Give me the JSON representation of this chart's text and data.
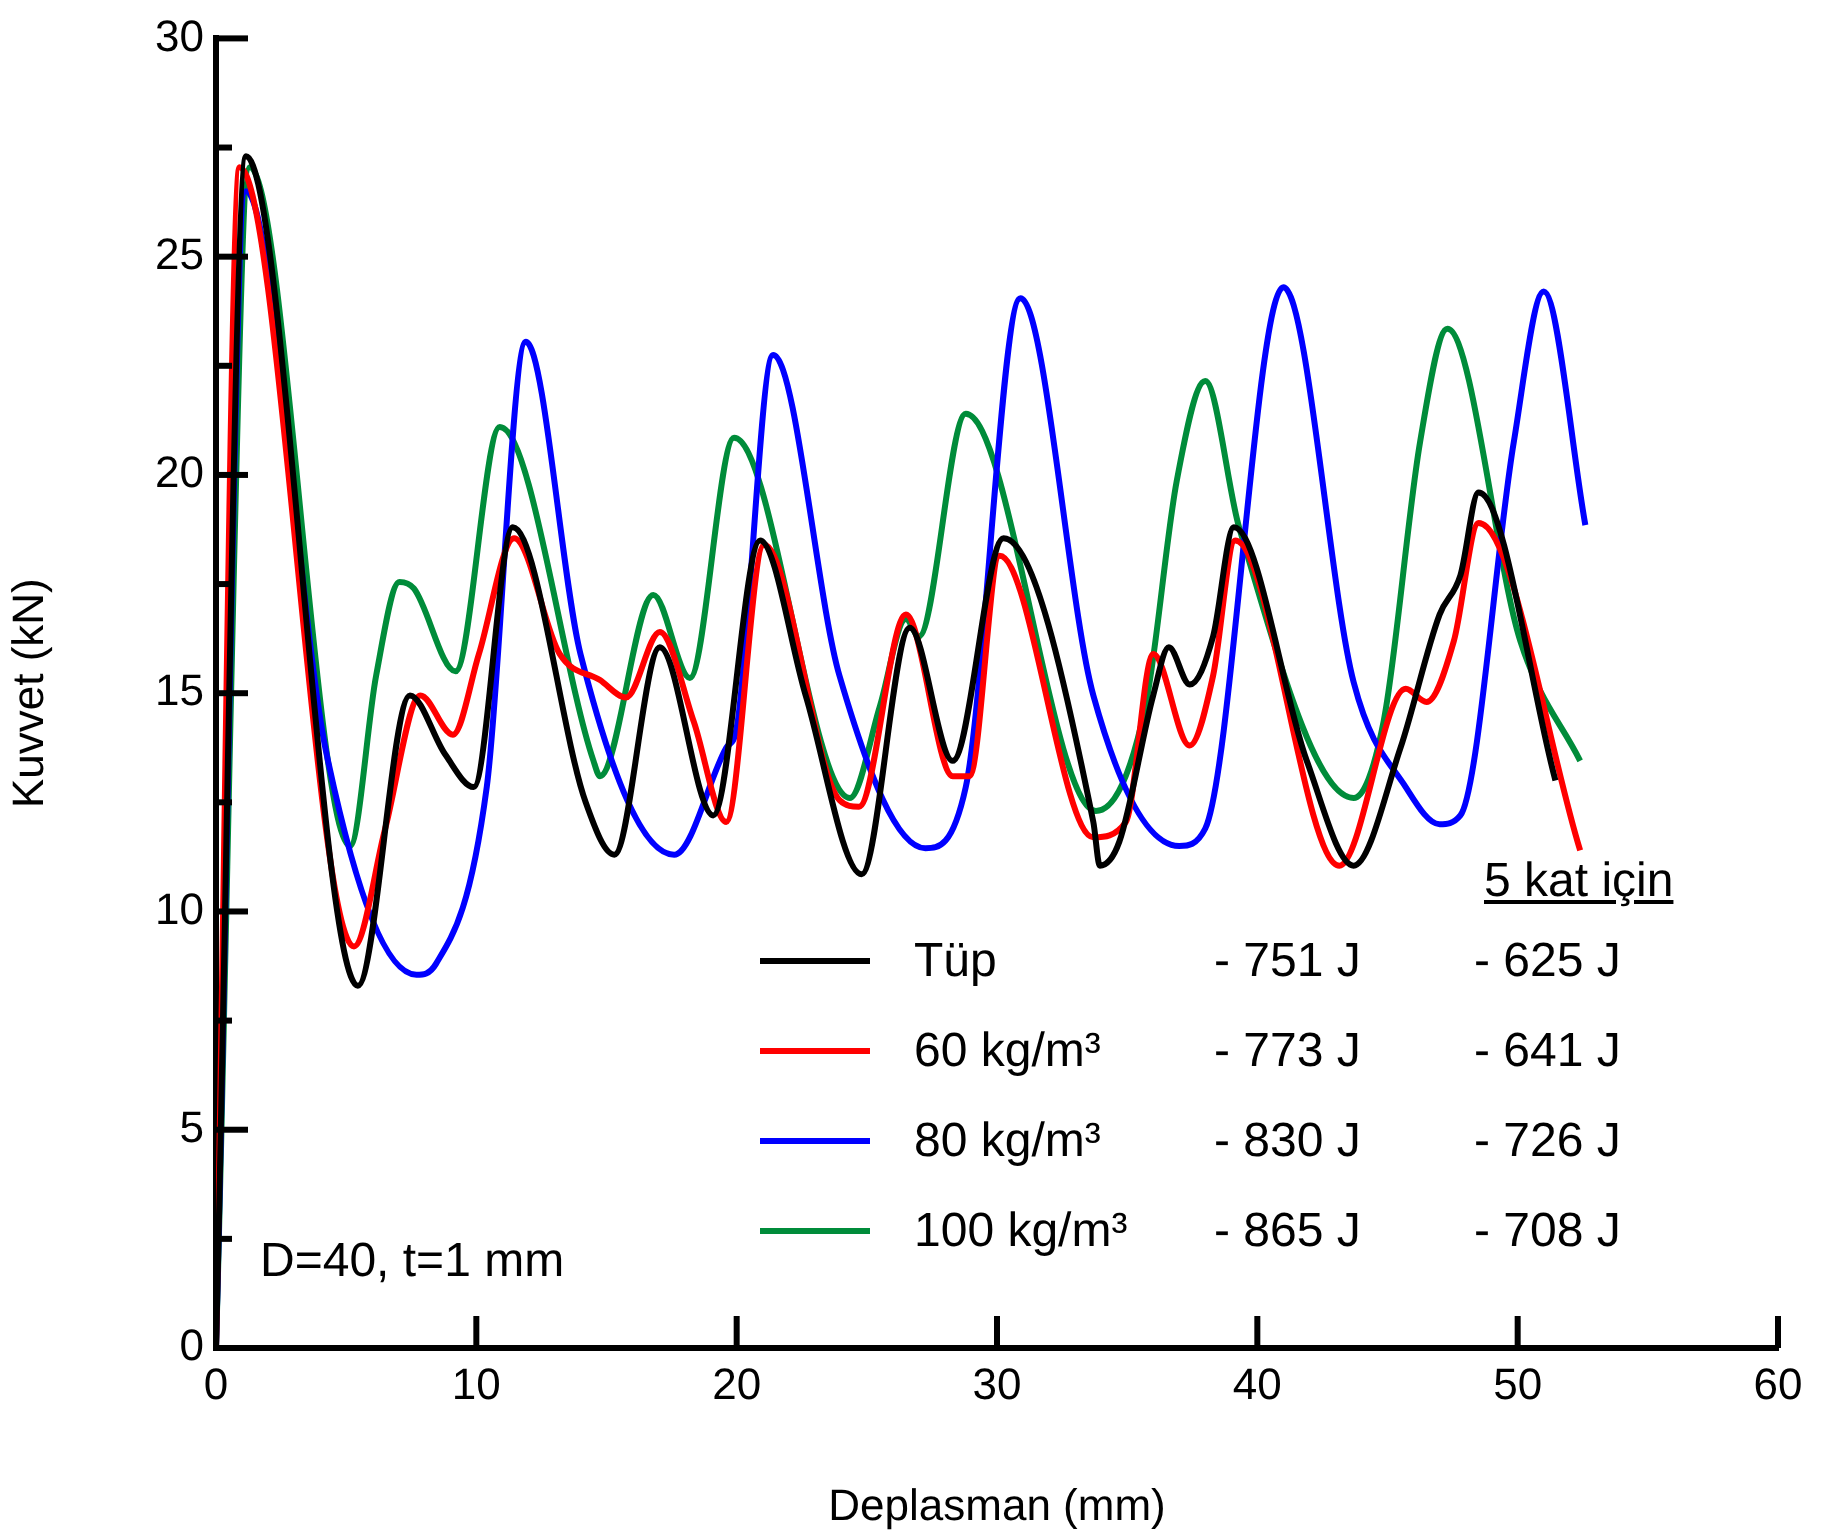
{
  "chart_data": {
    "type": "line",
    "xlabel": "Deplasman (mm)",
    "ylabel": "Kuvvet (kN)",
    "xlim": [
      0,
      60
    ],
    "ylim": [
      0,
      30
    ],
    "xticks": [
      0,
      10,
      20,
      30,
      40,
      50,
      60
    ],
    "yticks": [
      0,
      {
        "value": 2.5,
        "label": null
      },
      5,
      {
        "value": 7.5,
        "label": null
      },
      10,
      {
        "value": 12.5,
        "label": null
      },
      15,
      {
        "value": 17.5,
        "label": null
      },
      20,
      {
        "value": 22.5,
        "label": null
      },
      25,
      {
        "value": 27.5,
        "label": null
      },
      30
    ],
    "grid": false,
    "legend": "bottom right",
    "marker": "none",
    "line_style": "solid",
    "annotations": [
      "D=40, t=1 mm",
      "5 kat için",
      "-  751 J",
      "- 625 J",
      "-  773 J",
      "-  641 J",
      "-  830 J",
      "- 726 J",
      "-  865 J",
      "- 708 J"
    ],
    "series": [
      {
        "name": "Tüp",
        "color": "#000000",
        "x": [
          0,
          1.15,
          5.45,
          7.45,
          8.8,
          9.9,
          11.4,
          14.2,
          15.3,
          17.05,
          19.1,
          20.9,
          22.65,
          24.8,
          26.65,
          28.3,
          30.25,
          33.7,
          33.95,
          34.7,
          36,
          36.6,
          37.4,
          38.3,
          39.1,
          41.9,
          43.7,
          45.5,
          47,
          47.8,
          48.5,
          51.45
        ],
        "values": [
          0,
          27.3,
          8.3,
          14.95,
          13.6,
          12.85,
          18.8,
          12.5,
          11.3,
          16.05,
          12.2,
          18.5,
          14.95,
          10.85,
          16.5,
          13.45,
          18.55,
          12.05,
          11.05,
          11.6,
          14.95,
          16.05,
          15.2,
          16.3,
          18.8,
          13.45,
          11.05,
          13.75,
          16.8,
          17.7,
          19.6,
          13
        ]
      },
      {
        "name": "60 kg/m³",
        "color": "#ff0000",
        "x": [
          0,
          0.9,
          5.3,
          6.5,
          7.85,
          9.1,
          10.1,
          11.45,
          13.2,
          14.75,
          15.75,
          17.05,
          18.35,
          19.6,
          21.05,
          23.95,
          24.7,
          26.5,
          28.3,
          28.95,
          30.1,
          33.7,
          34.95,
          36,
          37.4,
          38.3,
          39.15,
          43.15,
          45.7,
          46.5,
          47.55,
          48.5,
          52.4
        ],
        "values": [
          0,
          27.05,
          9.2,
          11.9,
          14.95,
          14.05,
          15.9,
          18.55,
          15.9,
          15.3,
          14.9,
          16.4,
          14.35,
          12.05,
          18.4,
          12.55,
          12.4,
          16.8,
          13.1,
          13.1,
          18.15,
          11.7,
          12.05,
          15.9,
          13.8,
          15.4,
          18.5,
          11.05,
          15.1,
          14.8,
          16.2,
          18.9,
          11.4
        ]
      },
      {
        "name": "80 kg/m³",
        "color": "#0000ff",
        "x": [
          0,
          1.15,
          4.25,
          7.7,
          8.45,
          10.4,
          11.9,
          14,
          17.6,
          19.6,
          20,
          21.4,
          23.95,
          27.25,
          28.8,
          30.9,
          33.7,
          37,
          38,
          41,
          43.7,
          45.7,
          47,
          47.8,
          49.85,
          51,
          52.6
        ],
        "values": [
          0,
          26.5,
          13.6,
          8.55,
          8.8,
          12.85,
          23.05,
          15.9,
          11.3,
          13.75,
          14.2,
          22.75,
          15.4,
          11.45,
          12.85,
          24.05,
          14.95,
          11.5,
          11.9,
          24.3,
          15.25,
          12.85,
          12,
          12.2,
          20.75,
          24.2,
          18.85
        ]
      },
      {
        "name": "100 kg/m³",
        "color": "#008c3a",
        "x": [
          0,
          1.3,
          5.15,
          6.15,
          7.05,
          7.6,
          9.2,
          10.9,
          14.5,
          14.75,
          16.8,
          18.2,
          19.9,
          24.35,
          25.5,
          26.5,
          27,
          28.8,
          33.8,
          35.7,
          36.9,
          38,
          39.3,
          43.7,
          44.85,
          46.25,
          47.3,
          50.1,
          52.4
        ],
        "values": [
          0,
          27.05,
          11.5,
          15.4,
          17.55,
          17.4,
          15.5,
          21.1,
          13.45,
          13.1,
          17.25,
          15.35,
          20.85,
          12.6,
          14.7,
          16.7,
          16.3,
          21.4,
          12.3,
          14.7,
          19.85,
          22.15,
          18.8,
          12.6,
          14.35,
          20.75,
          23.35,
          16.2,
          13.45
        ]
      }
    ]
  }
}
